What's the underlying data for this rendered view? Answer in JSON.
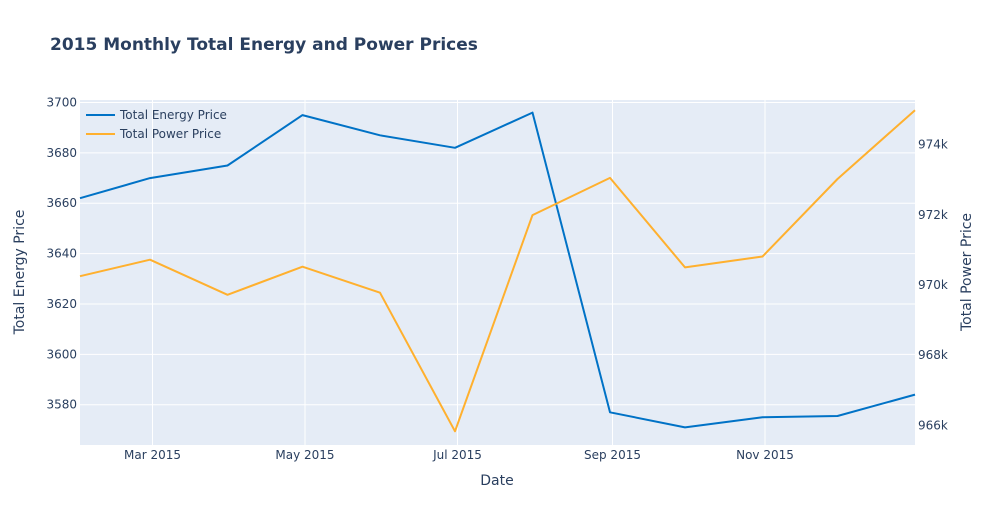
{
  "chart_data": {
    "type": "line",
    "title": "2015 Monthly Total Energy and Power Prices",
    "xlabel": "Date",
    "ylabel": "Total Energy Price",
    "y2label": "Total Power Price",
    "x": [
      "2015-01-31",
      "2015-02-28",
      "2015-03-31",
      "2015-04-30",
      "2015-05-31",
      "2015-06-30",
      "2015-07-31",
      "2015-08-31",
      "2015-09-30",
      "2015-10-31",
      "2015-11-30",
      "2015-12-31"
    ],
    "x_ticks": [
      {
        "date": "2015-03-01",
        "label": "Mar 2015"
      },
      {
        "date": "2015-05-01",
        "label": "May 2015"
      },
      {
        "date": "2015-07-01",
        "label": "Jul 2015"
      },
      {
        "date": "2015-09-01",
        "label": "Sep 2015"
      },
      {
        "date": "2015-11-01",
        "label": "Nov 2015"
      }
    ],
    "xlim": [
      "2015-01-31",
      "2015-12-31"
    ],
    "ylim": [
      3564,
      3701
    ],
    "y_ticks": [
      3580,
      3600,
      3620,
      3640,
      3660,
      3680,
      3700
    ],
    "y2lim": [
      965440,
      975270
    ],
    "y2_ticks": [
      966000,
      968000,
      970000,
      972000,
      974000
    ],
    "y2_tick_labels": [
      "966k",
      "968k",
      "970k",
      "972k",
      "974k"
    ],
    "grid": true,
    "legend_position": "top-left",
    "series": [
      {
        "name": "Total Energy Price",
        "axis": "y",
        "color": "#0072c6",
        "values": [
          3662,
          3670,
          3675,
          3695,
          3687,
          3682,
          3696,
          3577,
          3571,
          3575,
          3575.5,
          3584
        ]
      },
      {
        "name": "Total Power Price",
        "axis": "y2",
        "color": "#ffb02e",
        "values": [
          970250,
          970720,
          969720,
          970520,
          969780,
          965830,
          971990,
          973050,
          970500,
          970810,
          973020,
          974980
        ]
      }
    ]
  }
}
